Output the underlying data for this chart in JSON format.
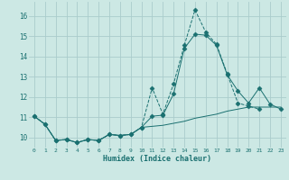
{
  "xlabel": "Humidex (Indice chaleur)",
  "bg_color": "#cce8e4",
  "grid_color": "#aacccc",
  "line_color": "#1a7070",
  "xlim": [
    -0.5,
    23.5
  ],
  "ylim": [
    9.5,
    16.7
  ],
  "xticks": [
    0,
    1,
    2,
    3,
    4,
    5,
    6,
    7,
    8,
    9,
    10,
    11,
    12,
    13,
    14,
    15,
    16,
    17,
    18,
    19,
    20,
    21,
    22,
    23
  ],
  "yticks": [
    10,
    11,
    12,
    13,
    14,
    15,
    16
  ],
  "series1_x": [
    0,
    1,
    2,
    3,
    4,
    5,
    6,
    7,
    8,
    9,
    10,
    11,
    12,
    13,
    14,
    15,
    16,
    17,
    18,
    19,
    20,
    21
  ],
  "series1_y": [
    11.05,
    10.65,
    9.85,
    9.9,
    9.75,
    9.9,
    9.85,
    10.15,
    10.1,
    10.15,
    10.5,
    12.45,
    11.15,
    12.65,
    14.55,
    16.3,
    15.2,
    14.6,
    13.15,
    11.7,
    11.55,
    11.4
  ],
  "series2_x": [
    0,
    1,
    2,
    3,
    4,
    5,
    6,
    7,
    8,
    9,
    10,
    11,
    12,
    13,
    14,
    15,
    16,
    17,
    18,
    19,
    20,
    21,
    22,
    23
  ],
  "series2_y": [
    11.05,
    10.65,
    9.85,
    9.9,
    9.75,
    9.9,
    9.85,
    10.15,
    10.1,
    10.15,
    10.5,
    11.05,
    11.1,
    12.15,
    14.4,
    15.1,
    15.05,
    14.55,
    13.1,
    12.3,
    11.7,
    12.45,
    11.65,
    11.4
  ],
  "series3_x": [
    0,
    1,
    2,
    3,
    4,
    5,
    6,
    7,
    8,
    9,
    10,
    11,
    12,
    13,
    14,
    15,
    16,
    17,
    18,
    19,
    20,
    21,
    22,
    23
  ],
  "series3_y": [
    11.05,
    10.65,
    9.85,
    9.9,
    9.75,
    9.9,
    9.85,
    10.15,
    10.1,
    10.15,
    10.5,
    10.55,
    10.6,
    10.7,
    10.8,
    10.95,
    11.05,
    11.15,
    11.3,
    11.4,
    11.5,
    11.5,
    11.5,
    11.5
  ]
}
